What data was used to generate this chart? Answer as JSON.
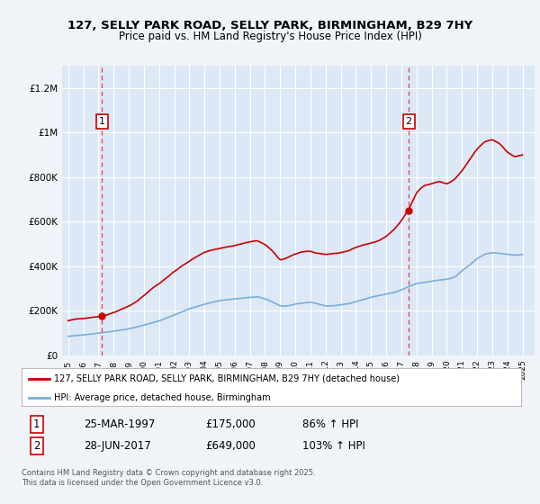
{
  "title_line1": "127, SELLY PARK ROAD, SELLY PARK, BIRMINGHAM, B29 7HY",
  "title_line2": "Price paid vs. HM Land Registry's House Price Index (HPI)",
  "ylim": [
    0,
    1300000
  ],
  "yticks": [
    0,
    200000,
    400000,
    600000,
    800000,
    1000000,
    1200000
  ],
  "ytick_labels": [
    "£0",
    "£200K",
    "£400K",
    "£600K",
    "£800K",
    "£1M",
    "£1.2M"
  ],
  "sale1_year": 1997.23,
  "sale1_price": 175000,
  "sale2_year": 2017.49,
  "sale2_price": 649000,
  "red_line_color": "#cc0000",
  "blue_line_color": "#7aacdc",
  "bg_color": "#f0f4f8",
  "plot_bg_color": "#dce8f5",
  "grid_color": "#ffffff",
  "dashed_line_color": "#dd4444",
  "legend_label_red": "127, SELLY PARK ROAD, SELLY PARK, BIRMINGHAM, B29 7HY (detached house)",
  "legend_label_blue": "HPI: Average price, detached house, Birmingham",
  "annotation1_label": "1",
  "annotation1_date": "25-MAR-1997",
  "annotation1_price": "£175,000",
  "annotation1_hpi": "86% ↑ HPI",
  "annotation2_label": "2",
  "annotation2_date": "28-JUN-2017",
  "annotation2_price": "£649,000",
  "annotation2_hpi": "103% ↑ HPI",
  "footer": "Contains HM Land Registry data © Crown copyright and database right 2025.\nThis data is licensed under the Open Government Licence v3.0."
}
